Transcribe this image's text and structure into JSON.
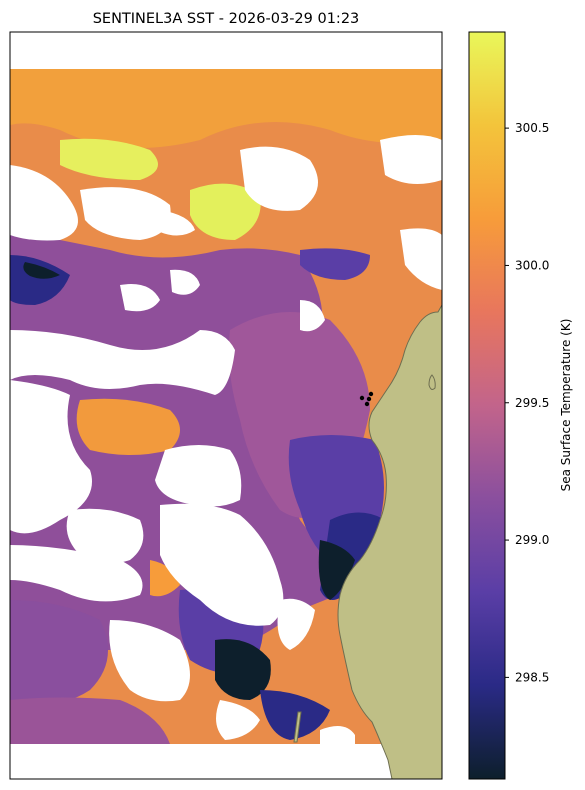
{
  "chart_data": {
    "type": "heatmap",
    "title": "SENTINEL3A SST - 2026-03-29 01:23",
    "colorbar": {
      "label": "Sea Surface Temperature (K)",
      "range": [
        298.13,
        300.85
      ],
      "ticks": [
        298.5,
        299.0,
        299.5,
        300.0,
        300.5
      ],
      "tick_labels": [
        "298.5",
        "299.0",
        "299.5",
        "300.0",
        "300.5"
      ],
      "colormap_stops": [
        "#0d1f2c",
        "#2a2a86",
        "#5a3ea6",
        "#8a4f9e",
        "#c2648b",
        "#e8765d",
        "#f79c3a",
        "#f3c43b",
        "#e9f75a"
      ]
    },
    "colors": {
      "land": "#bfbf86",
      "land_edge": "#6e6e50",
      "no_data": "#ffffff",
      "markers": "#000000"
    },
    "markers": 4,
    "grid": false
  }
}
